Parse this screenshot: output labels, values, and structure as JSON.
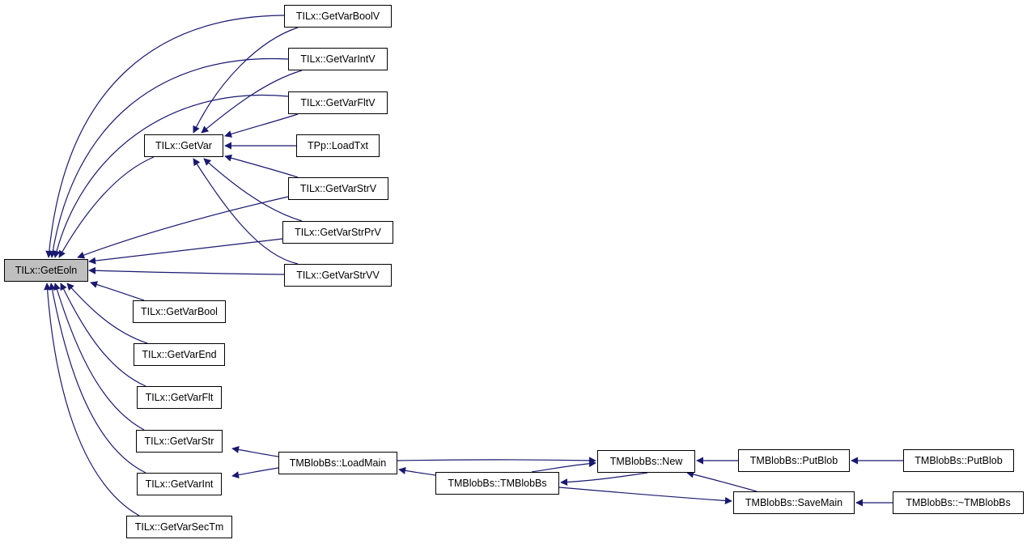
{
  "edge_color": "#191970",
  "root_fill": "#bfbfbf",
  "nodes": {
    "getEoln": "TILx::GetEoln",
    "getVarBoolV": "TILx::GetVarBoolV",
    "getVarIntV": "TILx::GetVarIntV",
    "getVarFltV": "TILx::GetVarFltV",
    "getVar": "TILx::GetVar",
    "loadTxt": "TPp::LoadTxt",
    "getVarStrV": "TILx::GetVarStrV",
    "getVarStrPrV": "TILx::GetVarStrPrV",
    "getVarStrVV": "TILx::GetVarStrVV",
    "getVarBool": "TILx::GetVarBool",
    "getVarEnd": "TILx::GetVarEnd",
    "getVarFlt": "TILx::GetVarFlt",
    "getVarStr": "TILx::GetVarStr",
    "getVarInt": "TILx::GetVarInt",
    "getVarSecTm": "TILx::GetVarSecTm",
    "loadMain": "TMBlobBs::LoadMain",
    "ctor": "TMBlobBs::TMBlobBs",
    "new": "TMBlobBs::New",
    "putBlob1": "TMBlobBs::PutBlob",
    "putBlob2": "TMBlobBs::PutBlob",
    "saveMain": "TMBlobBs::SaveMain",
    "dtor": "TMBlobBs::~TMBlobBs"
  }
}
